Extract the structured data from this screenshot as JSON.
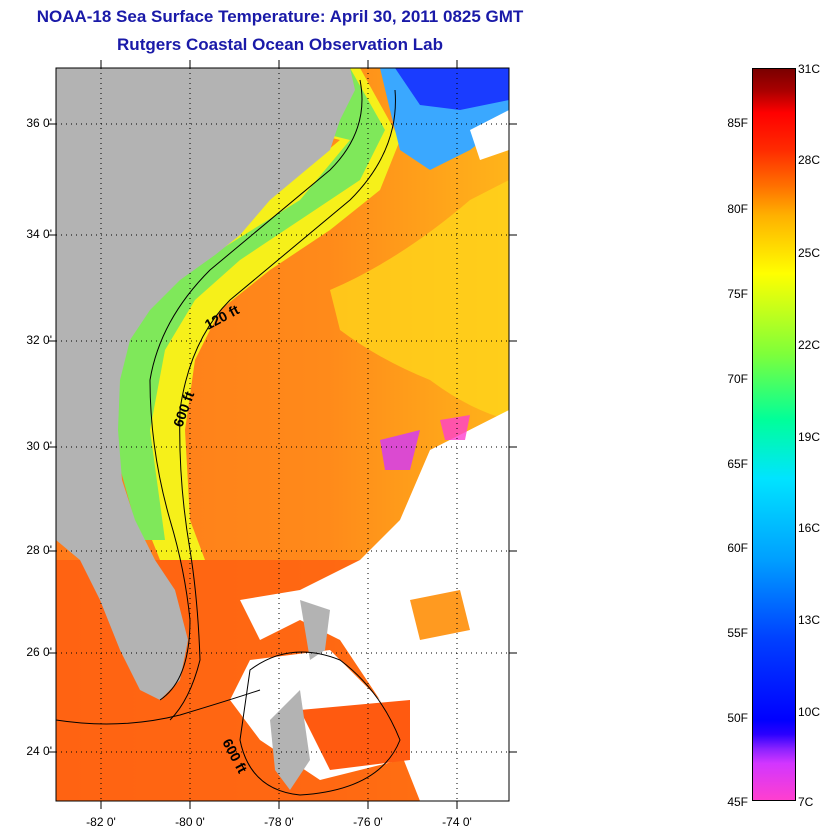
{
  "title": {
    "line1": "NOAA-18 Sea Surface Temperature:  April 30, 2011 0825 GMT",
    "line2": "Rutgers Coastal Ocean Observation Lab"
  },
  "map": {
    "lat_labels": [
      "36 0'",
      "34 0'",
      "32 0'",
      "30 0'",
      "28 0'",
      "26 0'",
      "24 0'"
    ],
    "lon_labels": [
      "-82 0'",
      "-80 0'",
      "-78 0'",
      "-76 0'",
      "-74 0'"
    ],
    "contour_labels": [
      "120 ft",
      "600 ft",
      "600 ft"
    ],
    "colors": {
      "land": "#b3b3b3",
      "gulf_stream": "#ff7a1a",
      "shelf_cool": "#f6f01a",
      "coastal_green": "#7fe85a",
      "cold_north": "#1a4aff",
      "clouds": "#ffffff"
    }
  },
  "colorbar": {
    "f_labels": [
      "85F",
      "80F",
      "75F",
      "70F",
      "65F",
      "60F",
      "55F",
      "50F",
      "45F"
    ],
    "c_labels": [
      "31C",
      "28C",
      "25C",
      "22C",
      "19C",
      "16C",
      "13C",
      "10C",
      "7C"
    ]
  }
}
